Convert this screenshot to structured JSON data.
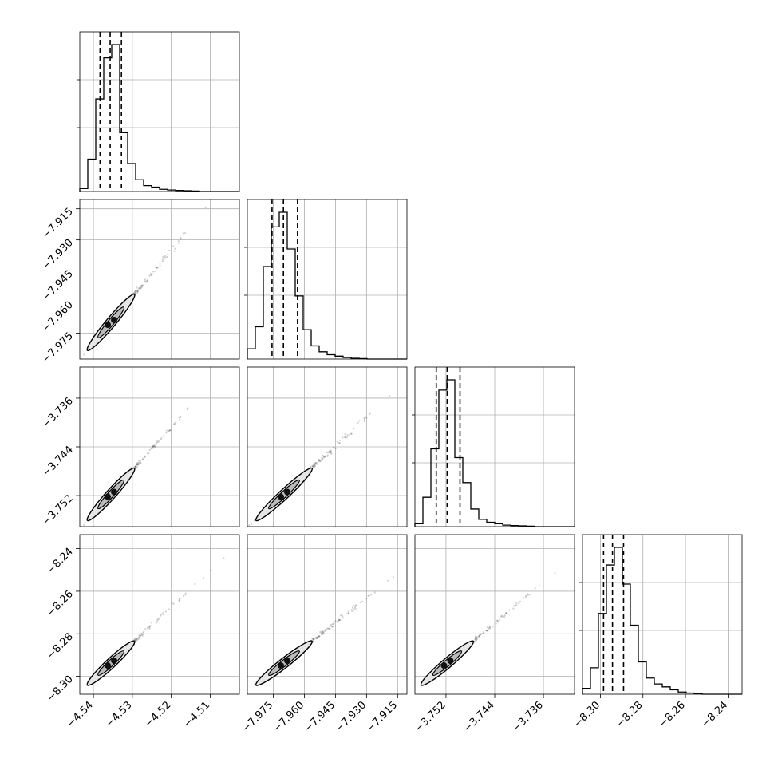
{
  "chart_data": {
    "type": "corner",
    "parameters": [
      {
        "range": [
          -4.5435,
          -4.5025
        ],
        "ticks": [
          -4.54,
          -4.53,
          -4.52,
          -4.51
        ],
        "tick_labels": [
          "−4.54",
          "−4.53",
          "−4.52",
          "−4.51"
        ],
        "quantiles": [
          -4.5383,
          -4.5357,
          -4.5328
        ],
        "peak": -4.5355,
        "hist": [
          0.02,
          0.22,
          0.63,
          0.91,
          1.0,
          0.4,
          0.19,
          0.08,
          0.04,
          0.03,
          0.015,
          0.01,
          0.007,
          0.005,
          0.003,
          0,
          0,
          0,
          0,
          0
        ]
      },
      {
        "range": [
          -7.9875,
          -7.9105
        ],
        "ticks": [
          -7.975,
          -7.96,
          -7.945,
          -7.93,
          -7.915
        ],
        "tick_labels": [
          "−7.975",
          "−7.960",
          "−7.945",
          "−7.930",
          "−7.915"
        ],
        "quantiles": [
          -7.9756,
          -7.9701,
          -7.9633
        ],
        "peak": -7.9698,
        "hist": [
          0.07,
          0.22,
          0.63,
          0.9,
          1.0,
          0.75,
          0.43,
          0.2,
          0.09,
          0.05,
          0.03,
          0.02,
          0.01,
          0.005,
          0.003,
          0,
          0,
          0,
          0,
          0
        ]
      },
      {
        "range": [
          -3.7571,
          -3.7309
        ],
        "ticks": [
          -3.752,
          -3.744,
          -3.736
        ],
        "tick_labels": [
          "−3.752",
          "−3.744",
          "−3.736"
        ],
        "quantiles": [
          -3.7536,
          -3.7518,
          -3.7497
        ],
        "peak": -3.7518,
        "hist": [
          0.02,
          0.2,
          0.53,
          0.93,
          1.0,
          0.47,
          0.3,
          0.12,
          0.05,
          0.03,
          0.02,
          0.01,
          0.007,
          0.005,
          0.003,
          0,
          0,
          0,
          0,
          0
        ]
      },
      {
        "range": [
          -8.3084,
          -8.2334
        ],
        "ticks": [
          -8.3,
          -8.28,
          -8.26,
          -8.24
        ],
        "tick_labels": [
          "−8.30",
          "−8.28",
          "−8.26",
          "−8.24"
        ],
        "quantiles": [
          -8.2985,
          -8.2943,
          -8.2891
        ],
        "peak": -8.2938,
        "hist": [
          0.04,
          0.18,
          0.55,
          0.88,
          1.0,
          0.75,
          0.47,
          0.22,
          0.11,
          0.07,
          0.05,
          0.03,
          0.015,
          0.008,
          0.004,
          0,
          0,
          0,
          0,
          0
        ]
      }
    ],
    "histogram_y_ticks": [
      0.4,
      0.7
    ],
    "grid": true,
    "quantile_line_style": "dashed"
  }
}
